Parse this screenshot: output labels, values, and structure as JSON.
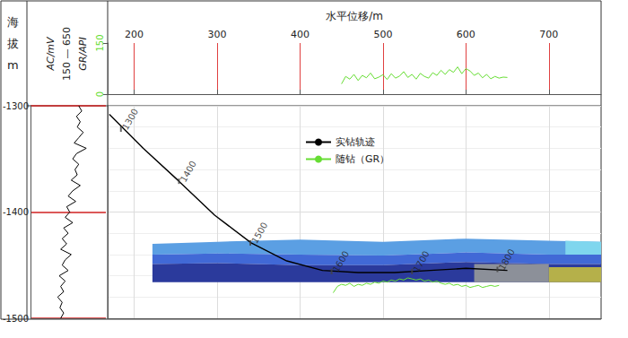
{
  "chart_data": {
    "type": "line",
    "x_axis_label": "水平位移/m",
    "y_axis_label": "海拔m",
    "xlim": [
      168,
      763
    ],
    "xticks": [
      200,
      300,
      400,
      500,
      600,
      700
    ],
    "ylim": [
      -1500,
      -1300
    ],
    "yticks": [
      -1500,
      -1400,
      -1300
    ],
    "grid": true,
    "legend": "top",
    "series": [
      {
        "name": "实钻轨迹",
        "color": "#000000",
        "type": "line",
        "x": [
          170,
          211,
          254,
          297,
          341,
          384,
          427,
          470,
          514,
          557,
          600,
          650
        ],
        "values": [
          -1308,
          -1340,
          -1371,
          -1403,
          -1429,
          -1446,
          -1455,
          -1457,
          -1457,
          -1455,
          -1453,
          -1455
        ]
      },
      {
        "name": "随钻（GR）",
        "color": "#66dd33",
        "type": "line",
        "x": [
          440,
          445,
          450,
          455,
          460,
          465,
          470,
          475,
          480,
          485,
          490,
          495,
          500,
          505,
          510,
          515,
          520,
          525,
          530,
          535,
          540,
          545,
          550,
          555,
          560,
          565,
          570,
          575,
          580,
          585,
          590,
          595,
          600,
          605,
          610,
          615,
          620,
          625,
          630,
          635,
          640
        ],
        "values": [
          -1476,
          -1470,
          -1468,
          -1469,
          -1467,
          -1470,
          -1468,
          -1469,
          -1467,
          -1468,
          -1466,
          -1467,
          -1465,
          -1466,
          -1464,
          -1465,
          -1463,
          -1464,
          -1462,
          -1463,
          -1464,
          -1463,
          -1465,
          -1464,
          -1466,
          -1465,
          -1467,
          -1468,
          -1467,
          -1469,
          -1468,
          -1470,
          -1469,
          -1471,
          -1470,
          -1469,
          -1471,
          -1470,
          -1469,
          -1470,
          -1469
        ]
      }
    ],
    "depth_marks": {
      "md": [
        1300,
        1400,
        1500,
        1600,
        1700,
        1800
      ],
      "x": [
        184,
        254,
        340,
        438,
        535,
        638
      ],
      "values": [
        -1322,
        -1371,
        -1429,
        -1456,
        -1456,
        -1454
      ]
    },
    "formation_layers": [
      {
        "color": "#5b9fe3",
        "x": [
          222,
          300,
          400,
          500,
          600,
          700,
          763
        ],
        "top": [
          -1430,
          -1428,
          -1426,
          -1428,
          -1425,
          -1427,
          -1428
        ],
        "bottom": [
          -1440,
          -1439,
          -1440,
          -1441,
          -1438,
          -1440,
          -1440
        ]
      },
      {
        "color": "#4169d6",
        "x": [
          222,
          300,
          400,
          500,
          600,
          700,
          763
        ],
        "top": [
          -1440,
          -1439,
          -1440,
          -1441,
          -1438,
          -1440,
          -1440
        ],
        "bottom": [
          -1449,
          -1448,
          -1450,
          -1450,
          -1447,
          -1449,
          -1449
        ]
      },
      {
        "color": "#2b3a9c",
        "x": [
          222,
          300,
          400,
          500,
          600,
          700,
          763
        ],
        "top": [
          -1449,
          -1448,
          -1450,
          -1450,
          -1447,
          -1449,
          -1449
        ],
        "bottom": [
          -1466,
          -1466,
          -1466,
          -1466,
          -1466,
          -1466,
          -1466
        ]
      },
      {
        "color": "#8c9099",
        "x": [
          610,
          700
        ],
        "top": [
          -1449,
          -1449
        ],
        "bottom": [
          -1466,
          -1466
        ]
      },
      {
        "color": "#b5b04a",
        "x": [
          700,
          763
        ],
        "top": [
          -1452,
          -1452
        ],
        "bottom": [
          -1466,
          -1466
        ]
      },
      {
        "color": "#7fd6ee",
        "x": [
          720,
          763
        ],
        "top": [
          -1427,
          -1428
        ],
        "bottom": [
          -1440,
          -1440
        ]
      }
    ],
    "gr_panel": {
      "axis_label": "GR/API",
      "color": "#66dd33",
      "ylim": [
        0,
        150
      ],
      "yticks": [
        0,
        150
      ],
      "x": [
        450,
        455,
        460,
        465,
        470,
        475,
        480,
        485,
        490,
        495,
        500,
        505,
        510,
        515,
        520,
        525,
        530,
        535,
        540,
        545,
        550,
        555,
        560,
        565,
        570,
        575,
        580,
        585,
        590,
        595,
        600,
        605,
        610,
        615,
        620,
        625,
        630,
        635,
        640,
        645,
        650
      ],
      "values": [
        30,
        52,
        44,
        58,
        40,
        55,
        48,
        62,
        45,
        50,
        57,
        43,
        60,
        47,
        53,
        66,
        49,
        58,
        44,
        61,
        52,
        47,
        63,
        55,
        70,
        58,
        72,
        64,
        80,
        60,
        75,
        68,
        55,
        62,
        48,
        58,
        45,
        52,
        47,
        50,
        49
      ]
    },
    "ac_track": {
      "axis_label": "AC/mV",
      "scale_label": "150 — 650",
      "color": "#000000",
      "xlim": [
        150,
        650
      ],
      "depth": [
        -1300,
        -1305,
        -1310,
        -1315,
        -1320,
        -1325,
        -1330,
        -1335,
        -1340,
        -1345,
        -1350,
        -1355,
        -1360,
        -1365,
        -1370,
        -1375,
        -1380,
        -1385,
        -1390,
        -1395,
        -1400,
        -1405,
        -1410,
        -1415,
        -1420,
        -1425,
        -1430,
        -1435,
        -1440,
        -1445,
        -1450,
        -1455,
        -1460,
        -1465,
        -1470,
        -1475,
        -1480,
        -1485,
        -1490,
        -1495,
        -1500
      ],
      "values": [
        470,
        490,
        455,
        480,
        460,
        500,
        470,
        440,
        520,
        455,
        430,
        470,
        445,
        460,
        420,
        480,
        430,
        400,
        450,
        390,
        410,
        380,
        430,
        370,
        400,
        360,
        390,
        350,
        420,
        380,
        360,
        400,
        340,
        380,
        350,
        370,
        330,
        360,
        345,
        370,
        350
      ]
    }
  }
}
